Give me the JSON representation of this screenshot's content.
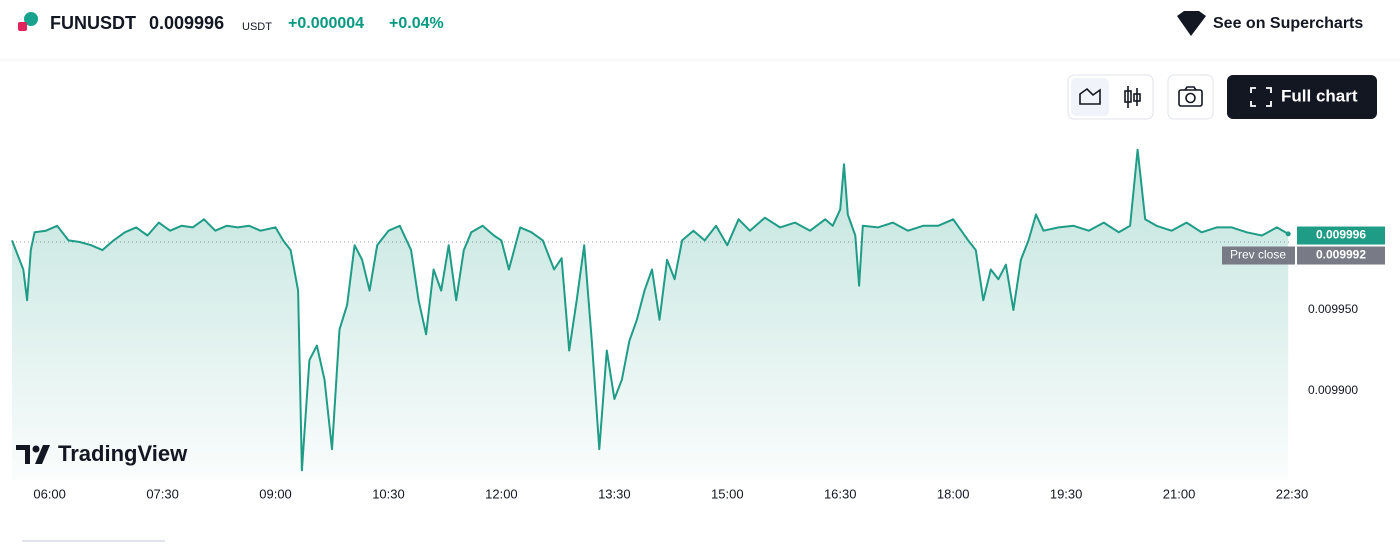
{
  "header": {
    "symbol": "FUNUSDT",
    "currency": "USDT",
    "change": "+0.000004",
    "change_percent": "+0.04%",
    "supercharts": "See on Supercharts"
  },
  "toolbar": {
    "full_chart": "Full chart"
  },
  "brand": "TradingView",
  "chart_data": {
    "type": "area",
    "color": "#1f9c86",
    "x": [
      5.5,
      5.65,
      5.7,
      5.75,
      5.8,
      5.95,
      6.1,
      6.25,
      6.4,
      6.55,
      6.7,
      6.85,
      7.0,
      7.15,
      7.3,
      7.45,
      7.6,
      7.75,
      7.9,
      8.05,
      8.2,
      8.35,
      8.5,
      8.65,
      8.8,
      9.0,
      9.1,
      9.2,
      9.3,
      9.35,
      9.45,
      9.55,
      9.65,
      9.75,
      9.85,
      9.95,
      10.05,
      10.15,
      10.25,
      10.35,
      10.5,
      10.65,
      10.8,
      10.9,
      11.0,
      11.1,
      11.2,
      11.3,
      11.4,
      11.5,
      11.6,
      11.75,
      11.9,
      12.0,
      12.1,
      12.25,
      12.4,
      12.55,
      12.7,
      12.8,
      12.9,
      13.0,
      13.1,
      13.2,
      13.3,
      13.4,
      13.5,
      13.6,
      13.7,
      13.8,
      13.9,
      14.0,
      14.1,
      14.2,
      14.3,
      14.4,
      14.55,
      14.7,
      14.85,
      15.0,
      15.15,
      15.3,
      15.5,
      15.7,
      15.9,
      16.1,
      16.3,
      16.4,
      16.5,
      16.55,
      16.6,
      16.7,
      16.75,
      16.8,
      17.0,
      17.2,
      17.4,
      17.6,
      17.8,
      18.0,
      18.2,
      18.3,
      18.4,
      18.5,
      18.6,
      18.7,
      18.8,
      18.9,
      19.0,
      19.1,
      19.2,
      19.4,
      19.6,
      19.8,
      20.0,
      20.2,
      20.35,
      20.45,
      20.55,
      20.7,
      20.9,
      21.1,
      21.3,
      21.5,
      21.7,
      21.9,
      22.1,
      22.3,
      22.45
    ],
    "series": [
      {
        "name": "FUNUSDT",
        "values": [
          0.009993,
          0.009975,
          0.009956,
          0.009987,
          0.009998,
          0.009999,
          0.010002,
          0.009993,
          0.009992,
          0.00999,
          0.009987,
          0.009993,
          0.009998,
          0.010001,
          0.009996,
          0.010004,
          0.009999,
          0.010002,
          0.010001,
          0.010006,
          0.009999,
          0.010002,
          0.010001,
          0.010002,
          0.009999,
          0.010001,
          0.009993,
          0.009987,
          0.009962,
          0.009851,
          0.009919,
          0.009928,
          0.009907,
          0.009864,
          0.009938,
          0.009953,
          0.00999,
          0.009981,
          0.009962,
          0.00999,
          0.009999,
          0.010002,
          0.009987,
          0.009956,
          0.009935,
          0.009975,
          0.009962,
          0.00999,
          0.009956,
          0.009987,
          0.009998,
          0.010002,
          0.009996,
          0.009993,
          0.009975,
          0.010001,
          0.009998,
          0.009993,
          0.009975,
          0.009982,
          0.009925,
          0.009956,
          0.00999,
          0.009931,
          0.009864,
          0.009925,
          0.009895,
          0.009907,
          0.009931,
          0.009944,
          0.009962,
          0.009975,
          0.009944,
          0.009981,
          0.009969,
          0.009993,
          0.009999,
          0.009993,
          0.010002,
          0.00999,
          0.010006,
          0.009999,
          0.010007,
          0.010001,
          0.010004,
          0.009999,
          0.010006,
          0.010002,
          0.010012,
          0.01004,
          0.010009,
          0.009996,
          0.009965,
          0.010002,
          0.010001,
          0.010004,
          0.009999,
          0.010002,
          0.010002,
          0.010006,
          0.009993,
          0.009987,
          0.009956,
          0.009975,
          0.009969,
          0.009978,
          0.00995,
          0.009981,
          0.009993,
          0.010009,
          0.009999,
          0.010001,
          0.010002,
          0.009999,
          0.010004,
          0.009998,
          0.010002,
          0.010049,
          0.010006,
          0.010002,
          0.009999,
          0.010004,
          0.009998,
          0.010001,
          0.010001,
          0.009998,
          0.009996,
          0.010001,
          0.009997
        ]
      }
    ],
    "last_price": 0.009996,
    "prev_close": 0.009992,
    "prev_close_label": "Prev close",
    "xlim": [
      5.5,
      22.5
    ],
    "xticks": [
      {
        "value": 6,
        "label": "06:00"
      },
      {
        "value": 7.5,
        "label": "07:30"
      },
      {
        "value": 9,
        "label": "09:00"
      },
      {
        "value": 10.5,
        "label": "10:30"
      },
      {
        "value": 12,
        "label": "12:00"
      },
      {
        "value": 13.5,
        "label": "13:30"
      },
      {
        "value": 15,
        "label": "15:00"
      },
      {
        "value": 16.5,
        "label": "16:30"
      },
      {
        "value": 18,
        "label": "18:00"
      },
      {
        "value": 19.5,
        "label": "19:30"
      },
      {
        "value": 21,
        "label": "21:00"
      },
      {
        "value": 22.5,
        "label": "22:30"
      }
    ],
    "ylim": [
      0.009845,
      0.010055
    ],
    "yticks": [
      {
        "value": 0.0099,
        "label": "0.009900"
      },
      {
        "value": 0.00995,
        "label": "0.009950"
      }
    ]
  }
}
